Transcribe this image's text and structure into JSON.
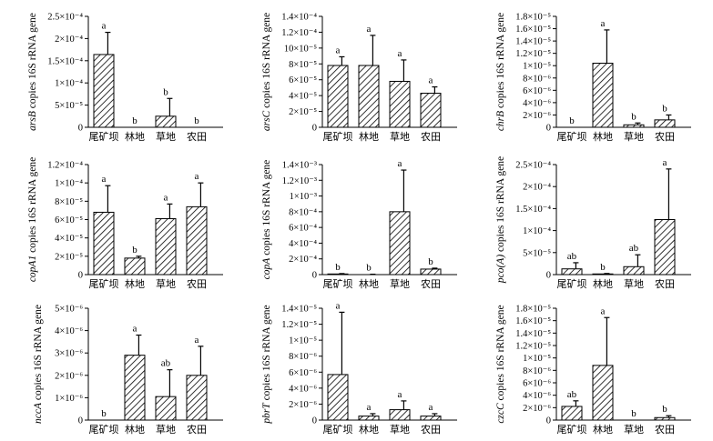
{
  "categories": [
    "尾矿坝",
    "林地",
    "草地",
    "农田"
  ],
  "chart_data": [
    {
      "type": "bar",
      "gene": "arsB",
      "ylabel_suffix": " copies 16S rRNA gene",
      "ylim": [
        0,
        0.00025
      ],
      "ticks": [
        {
          "v": 0,
          "label": "0"
        },
        {
          "v": 5e-05,
          "label": "5×10⁻⁵"
        },
        {
          "v": 0.0001,
          "label": "1×10⁻⁴"
        },
        {
          "v": 0.00015,
          "label": "1.5×10⁻⁴"
        },
        {
          "v": 0.0002,
          "label": "2×10⁻⁴"
        },
        {
          "v": 0.00025,
          "label": "2.5×10⁻⁴"
        }
      ],
      "values": [
        0.000164,
        0,
        2.5e-05,
        0
      ],
      "errors": [
        5e-05,
        0,
        4e-05,
        0
      ],
      "labels": [
        "a",
        "b",
        "b",
        "b"
      ]
    },
    {
      "type": "bar",
      "gene": "arsC",
      "ylabel_suffix": " copies 16S rRNA gene",
      "ylim": [
        0,
        0.00014
      ],
      "ticks": [
        {
          "v": 0,
          "label": "0"
        },
        {
          "v": 2e-05,
          "label": "2×10⁻⁵"
        },
        {
          "v": 4e-05,
          "label": "4×10⁻⁵"
        },
        {
          "v": 6e-05,
          "label": "6×10⁻⁵"
        },
        {
          "v": 8e-05,
          "label": "8×10⁻⁵"
        },
        {
          "v": 0.0001,
          "label": "10×10⁻⁵"
        },
        {
          "v": 0.00012,
          "label": "1.2×10⁻⁴"
        },
        {
          "v": 0.00014,
          "label": "1.4×10⁻⁴"
        }
      ],
      "values": [
        7.8e-05,
        7.8e-05,
        5.8e-05,
        4.3e-05
      ],
      "errors": [
        1.1e-05,
        3.8e-05,
        2.7e-05,
        8e-06
      ],
      "labels": [
        "a",
        "a",
        "a",
        "a"
      ]
    },
    {
      "type": "bar",
      "gene": "chrB",
      "ylabel_suffix": " copies 16S rRNA gene",
      "ylim": [
        0,
        1.8e-05
      ],
      "ticks": [
        {
          "v": 0,
          "label": "0"
        },
        {
          "v": 2e-06,
          "label": "2×10⁻⁶"
        },
        {
          "v": 4e-06,
          "label": "4×10⁻⁶"
        },
        {
          "v": 6e-06,
          "label": "6×10⁻⁶"
        },
        {
          "v": 8e-06,
          "label": "8×10⁻⁶"
        },
        {
          "v": 1e-05,
          "label": "1×10⁻⁵"
        },
        {
          "v": 1.2e-05,
          "label": "1.2×10⁻⁵"
        },
        {
          "v": 1.4e-05,
          "label": "1.4×10⁻⁵"
        },
        {
          "v": 1.6e-05,
          "label": "1.6×10⁻⁵"
        },
        {
          "v": 1.8e-05,
          "label": "1.8×10⁻⁵"
        }
      ],
      "values": [
        0,
        1.04e-05,
        4e-07,
        1.2e-06
      ],
      "errors": [
        0,
        5.4e-06,
        3e-07,
        8e-07
      ],
      "labels": [
        "b",
        "a",
        "b",
        "b"
      ]
    },
    {
      "type": "bar",
      "gene": "copA1",
      "ylabel_suffix": " copies 16S rRNA gene",
      "ylim": [
        0,
        0.00012
      ],
      "ticks": [
        {
          "v": 0,
          "label": "0"
        },
        {
          "v": 2e-05,
          "label": "2×10⁻⁵"
        },
        {
          "v": 4e-05,
          "label": "4×10⁻⁵"
        },
        {
          "v": 6e-05,
          "label": "6×10⁻⁵"
        },
        {
          "v": 8e-05,
          "label": "8×10⁻⁵"
        },
        {
          "v": 0.0001,
          "label": "1×10⁻⁴"
        },
        {
          "v": 0.00012,
          "label": "1.2×10⁻⁴"
        }
      ],
      "values": [
        6.8e-05,
        1.8e-05,
        6.1e-05,
        7.4e-05
      ],
      "errors": [
        2.9e-05,
        2e-06,
        1.6e-05,
        2.6e-05
      ],
      "labels": [
        "a",
        "b",
        "a",
        "a"
      ]
    },
    {
      "type": "bar",
      "gene": "copA",
      "ylabel_suffix": " copies 16S rRNA gene",
      "ylim": [
        0,
        0.0014
      ],
      "ticks": [
        {
          "v": 0,
          "label": "0"
        },
        {
          "v": 0.0002,
          "label": "2×10⁻⁴"
        },
        {
          "v": 0.0004,
          "label": "4×10⁻⁴"
        },
        {
          "v": 0.0006,
          "label": "6×10⁻⁴"
        },
        {
          "v": 0.0008,
          "label": "8×10⁻⁴"
        },
        {
          "v": 0.001,
          "label": "1×10⁻³"
        },
        {
          "v": 0.0012,
          "label": "1.2×10⁻³"
        },
        {
          "v": 0.0014,
          "label": "1.4×10⁻³"
        }
      ],
      "values": [
        8e-06,
        3e-06,
        0.0008,
        7e-05
      ],
      "errors": [
        5e-06,
        2e-06,
        0.00053,
        1.2e-05
      ],
      "labels": [
        "b",
        "b",
        "a",
        "b"
      ]
    },
    {
      "type": "bar",
      "gene": "pco(A)",
      "ylabel_suffix": " copies 16S rRNA gene",
      "ylim": [
        0,
        0.00025
      ],
      "ticks": [
        {
          "v": 0,
          "label": "0"
        },
        {
          "v": 5e-05,
          "label": "5×10⁻⁵"
        },
        {
          "v": 0.0001,
          "label": "1×10⁻⁴"
        },
        {
          "v": 0.00015,
          "label": "1.5×10⁻⁴"
        },
        {
          "v": 0.0002,
          "label": "2×10⁻⁴"
        },
        {
          "v": 0.00025,
          "label": "2.5×10⁻⁴"
        }
      ],
      "values": [
        1.3e-05,
        1.5e-06,
        1.8e-05,
        0.000125
      ],
      "errors": [
        1.4e-05,
        1e-06,
        2.7e-05,
        0.000115
      ],
      "labels": [
        "ab",
        "b",
        "ab",
        "a"
      ]
    },
    {
      "type": "bar",
      "gene": "nccA",
      "ylabel_suffix": " copies 16S rRNA gene",
      "ylim": [
        0,
        5e-06
      ],
      "ticks": [
        {
          "v": 0,
          "label": "0"
        },
        {
          "v": 1e-06,
          "label": "1×10⁻⁶"
        },
        {
          "v": 2e-06,
          "label": "2×10⁻⁶"
        },
        {
          "v": 3e-06,
          "label": "3×10⁻⁶"
        },
        {
          "v": 4e-06,
          "label": "4×10⁻⁶"
        },
        {
          "v": 5e-06,
          "label": "5×10⁻⁶"
        }
      ],
      "values": [
        0,
        2.9e-06,
        1.05e-06,
        2e-06
      ],
      "errors": [
        0,
        9e-07,
        1.2e-06,
        1.3e-06
      ],
      "labels": [
        "b",
        "a",
        "ab",
        "a"
      ]
    },
    {
      "type": "bar",
      "gene": "pbrT",
      "ylabel_suffix": " copies 16S rRNA gene",
      "ylim": [
        0,
        1.4e-05
      ],
      "ticks": [
        {
          "v": 0,
          "label": "0"
        },
        {
          "v": 2e-06,
          "label": "2×10⁻⁶"
        },
        {
          "v": 4e-06,
          "label": "4×10⁻⁶"
        },
        {
          "v": 6e-06,
          "label": "6×10⁻⁶"
        },
        {
          "v": 8e-06,
          "label": "8×10⁻⁶"
        },
        {
          "v": 1e-05,
          "label": "1×10⁻⁵"
        },
        {
          "v": 1.2e-05,
          "label": "1.2×10⁻⁵"
        },
        {
          "v": 1.4e-05,
          "label": "1.4×10⁻⁵"
        }
      ],
      "values": [
        5.7e-06,
        5e-07,
        1.3e-06,
        5e-07
      ],
      "errors": [
        7.8e-06,
        3e-07,
        1.1e-06,
        3e-07
      ],
      "labels": [
        "a",
        "a",
        "a",
        "a"
      ]
    },
    {
      "type": "bar",
      "gene": "czcC",
      "ylabel_suffix": " copies 16S rRNA gene",
      "ylim": [
        0,
        1.8e-05
      ],
      "ticks": [
        {
          "v": 0,
          "label": "0"
        },
        {
          "v": 2e-06,
          "label": "2×10⁻⁶"
        },
        {
          "v": 4e-06,
          "label": "4×10⁻⁶"
        },
        {
          "v": 6e-06,
          "label": "6×10⁻⁶"
        },
        {
          "v": 8e-06,
          "label": "8×10⁻⁶"
        },
        {
          "v": 1e-05,
          "label": "1×10⁻⁵"
        },
        {
          "v": 1.2e-05,
          "label": "1.2×10⁻⁵"
        },
        {
          "v": 1.4e-05,
          "label": "1.4×10⁻⁵"
        },
        {
          "v": 1.6e-05,
          "label": "1.6×10⁻⁵"
        },
        {
          "v": 1.8e-05,
          "label": "1.8×10⁻⁵"
        }
      ],
      "values": [
        2.2e-06,
        8.8e-06,
        0,
        4e-07
      ],
      "errors": [
        9e-07,
        7.7e-06,
        0,
        3e-07
      ],
      "labels": [
        "ab",
        "a",
        "b",
        "b"
      ]
    }
  ]
}
